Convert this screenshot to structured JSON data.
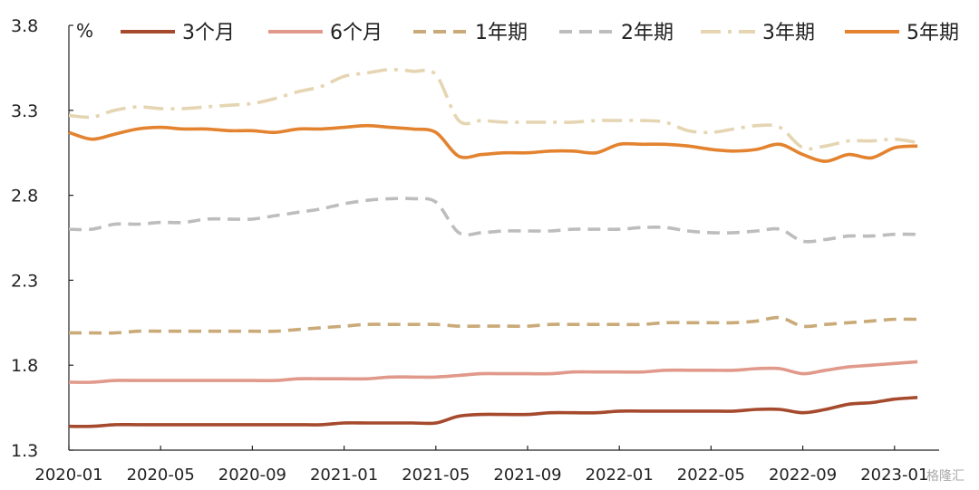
{
  "chart_data": {
    "type": "line",
    "unit_label": "%",
    "ylim": [
      1.3,
      3.8
    ],
    "y_ticks": [
      "3.8",
      "3.3",
      "2.8",
      "2.3",
      "1.8",
      "1.3"
    ],
    "x_tick_labels": [
      "2020-01",
      "2020-05",
      "2020-09",
      "2021-01",
      "2021-05",
      "2021-09",
      "2022-01",
      "2022-05",
      "2022-09",
      "2023-01"
    ],
    "legend_position": "top",
    "grid": false,
    "x": [
      "2020-01",
      "2020-02",
      "2020-03",
      "2020-04",
      "2020-05",
      "2020-06",
      "2020-07",
      "2020-08",
      "2020-09",
      "2020-10",
      "2020-11",
      "2020-12",
      "2021-01",
      "2021-02",
      "2021-03",
      "2021-04",
      "2021-05",
      "2021-06",
      "2021-07",
      "2021-08",
      "2021-09",
      "2021-10",
      "2021-11",
      "2021-12",
      "2022-01",
      "2022-02",
      "2022-03",
      "2022-04",
      "2022-05",
      "2022-06",
      "2022-07",
      "2022-08",
      "2022-09",
      "2022-10",
      "2022-11",
      "2022-12",
      "2023-01",
      "2023-02"
    ],
    "series": [
      {
        "name": "3个月",
        "color": "#a54a2d",
        "dash": "solid",
        "values": [
          1.44,
          1.44,
          1.45,
          1.45,
          1.45,
          1.45,
          1.45,
          1.45,
          1.45,
          1.45,
          1.45,
          1.45,
          1.46,
          1.46,
          1.46,
          1.46,
          1.46,
          1.5,
          1.51,
          1.51,
          1.51,
          1.52,
          1.52,
          1.52,
          1.53,
          1.53,
          1.53,
          1.53,
          1.53,
          1.53,
          1.54,
          1.54,
          1.52,
          1.54,
          1.57,
          1.58,
          1.6,
          1.61
        ]
      },
      {
        "name": "6个月",
        "color": "#e0998a",
        "dash": "solid",
        "values": [
          1.7,
          1.7,
          1.71,
          1.71,
          1.71,
          1.71,
          1.71,
          1.71,
          1.71,
          1.71,
          1.72,
          1.72,
          1.72,
          1.72,
          1.73,
          1.73,
          1.73,
          1.74,
          1.75,
          1.75,
          1.75,
          1.75,
          1.76,
          1.76,
          1.76,
          1.76,
          1.77,
          1.77,
          1.77,
          1.77,
          1.78,
          1.78,
          1.75,
          1.77,
          1.79,
          1.8,
          1.81,
          1.82
        ]
      },
      {
        "name": "1年期",
        "color": "#c9aa78",
        "dash": "dash",
        "values": [
          1.99,
          1.99,
          1.99,
          2.0,
          2.0,
          2.0,
          2.0,
          2.0,
          2.0,
          2.0,
          2.01,
          2.02,
          2.03,
          2.04,
          2.04,
          2.04,
          2.04,
          2.03,
          2.03,
          2.03,
          2.03,
          2.04,
          2.04,
          2.04,
          2.04,
          2.04,
          2.05,
          2.05,
          2.05,
          2.05,
          2.06,
          2.08,
          2.03,
          2.04,
          2.05,
          2.06,
          2.07,
          2.07
        ]
      },
      {
        "name": "2年期",
        "color": "#bdbdbd",
        "dash": "dash",
        "values": [
          2.6,
          2.6,
          2.63,
          2.63,
          2.64,
          2.64,
          2.66,
          2.66,
          2.66,
          2.68,
          2.7,
          2.72,
          2.75,
          2.77,
          2.78,
          2.78,
          2.76,
          2.58,
          2.58,
          2.59,
          2.59,
          2.59,
          2.6,
          2.6,
          2.6,
          2.61,
          2.61,
          2.59,
          2.58,
          2.58,
          2.59,
          2.6,
          2.53,
          2.54,
          2.56,
          2.56,
          2.57,
          2.57
        ]
      },
      {
        "name": "3年期",
        "color": "#e5d5b2",
        "dash": "dashdot",
        "values": [
          3.27,
          3.26,
          3.3,
          3.32,
          3.31,
          3.31,
          3.32,
          3.33,
          3.34,
          3.37,
          3.41,
          3.44,
          3.5,
          3.52,
          3.54,
          3.53,
          3.51,
          3.24,
          3.24,
          3.23,
          3.23,
          3.23,
          3.23,
          3.24,
          3.24,
          3.24,
          3.23,
          3.18,
          3.17,
          3.19,
          3.21,
          3.2,
          3.08,
          3.09,
          3.12,
          3.12,
          3.13,
          3.11
        ]
      },
      {
        "name": "5年期",
        "color": "#e3832f",
        "dash": "solid",
        "values": [
          3.17,
          3.13,
          3.16,
          3.19,
          3.2,
          3.19,
          3.19,
          3.18,
          3.18,
          3.17,
          3.19,
          3.19,
          3.2,
          3.21,
          3.2,
          3.19,
          3.17,
          3.03,
          3.04,
          3.05,
          3.05,
          3.06,
          3.06,
          3.05,
          3.1,
          3.1,
          3.1,
          3.09,
          3.07,
          3.06,
          3.07,
          3.1,
          3.04,
          3.0,
          3.04,
          3.02,
          3.08,
          3.09
        ]
      }
    ]
  },
  "watermark": "格隆汇"
}
